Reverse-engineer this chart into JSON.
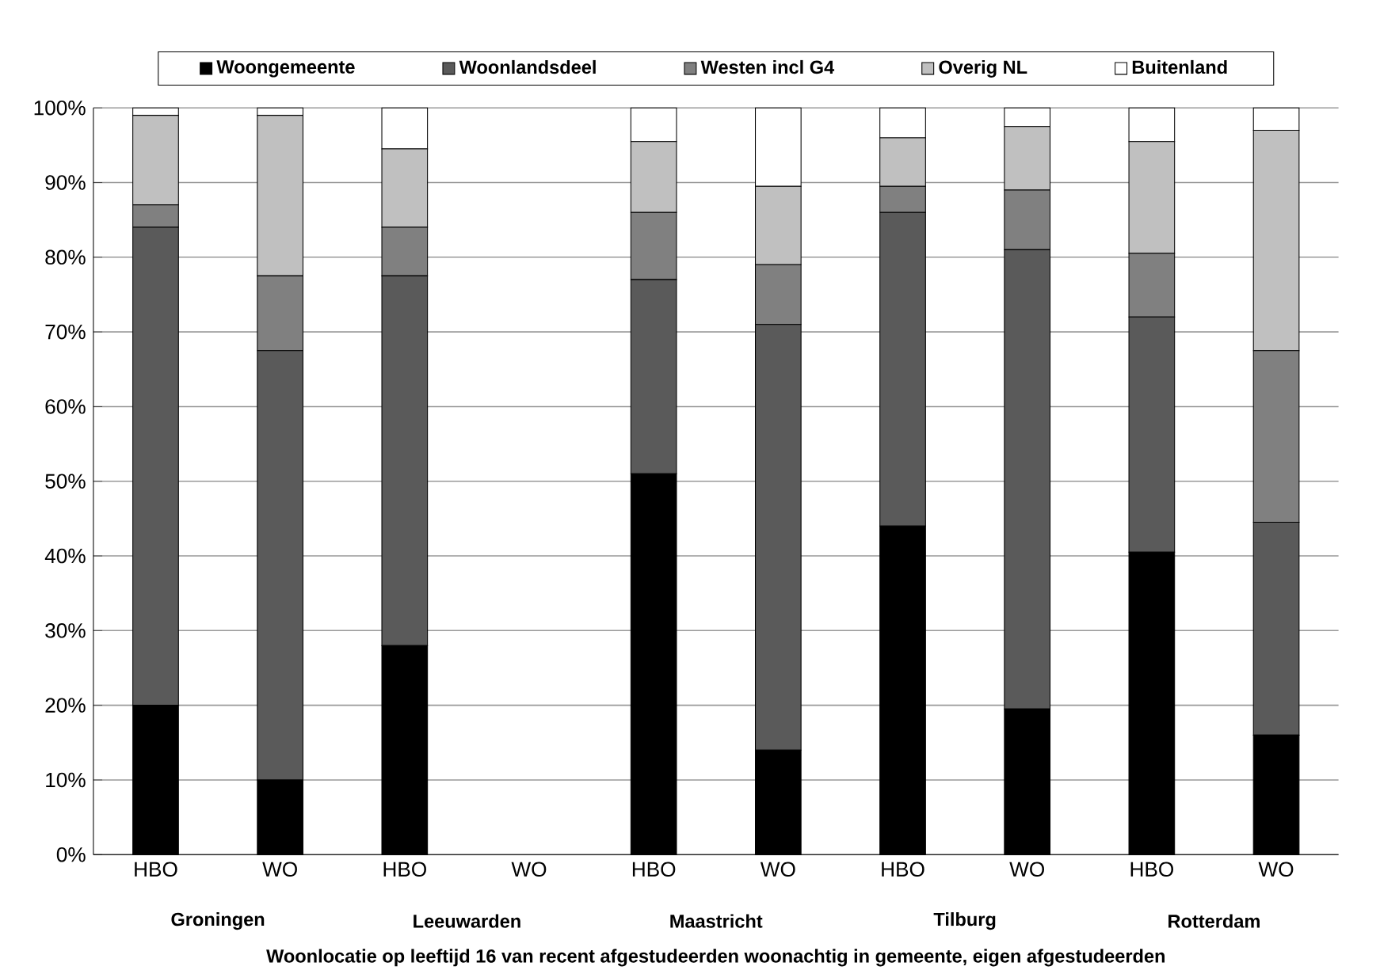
{
  "chart_data": {
    "type": "bar",
    "stacked": true,
    "categories": [
      "HBO",
      "WO",
      "HBO",
      "WO",
      "HBO",
      "WO",
      "HBO",
      "WO",
      "HBO",
      "WO"
    ],
    "series": [
      {
        "name": "Woongemeente",
        "color": "#000000",
        "values": [
          20,
          10,
          28,
          null,
          51,
          14,
          44,
          19.5,
          40.5,
          16
        ]
      },
      {
        "name": "Woonlandsdeel",
        "color": "#5a5a5a",
        "values": [
          64,
          57.5,
          49.5,
          null,
          26,
          57,
          42,
          61.5,
          31.5,
          28.5
        ]
      },
      {
        "name": "Westen incl G4",
        "color": "#808080",
        "values": [
          3,
          10,
          6.5,
          null,
          9,
          8,
          3.5,
          8,
          8.5,
          23
        ]
      },
      {
        "name": "Overig NL",
        "color": "#c0c0c0",
        "values": [
          12,
          21.5,
          10.5,
          null,
          9.5,
          10.5,
          6.5,
          8.5,
          15,
          29.5
        ]
      },
      {
        "name": "Buitenland",
        "color": "#ffffff",
        "values": [
          1,
          1,
          5.5,
          null,
          4.5,
          10.5,
          4,
          2.5,
          4.5,
          3
        ]
      }
    ],
    "ylim": [
      0,
      100
    ],
    "yticks": [
      {
        "value": 0,
        "label": "0%"
      },
      {
        "value": 10,
        "label": "10%"
      },
      {
        "value": 20,
        "label": "20%"
      },
      {
        "value": 30,
        "label": "30%"
      },
      {
        "value": 40,
        "label": "40%"
      },
      {
        "value": 50,
        "label": "50%"
      },
      {
        "value": 60,
        "label": "60%"
      },
      {
        "value": 70,
        "label": "70%"
      },
      {
        "value": 80,
        "label": "80%"
      },
      {
        "value": 90,
        "label": "90%"
      },
      {
        "value": 100,
        "label": "100%"
      }
    ],
    "grid": "y",
    "legend": "top",
    "annotations": [
      "Groningen",
      "Leeuwarden",
      "Maastricht",
      "Tilburg",
      "Rotterdam"
    ],
    "xlabel": "Woonlocatie op leeftijd 16 van recent afgestudeerden woonachtig in gemeente, eigen afgestudeerden"
  }
}
